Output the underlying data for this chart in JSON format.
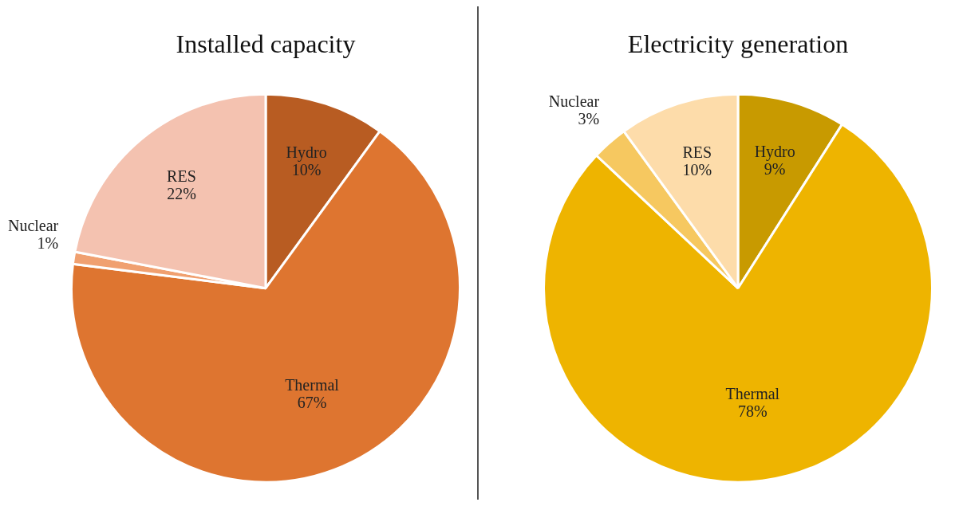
{
  "chart_data": [
    {
      "type": "pie",
      "title": "Installed capacity",
      "categories": [
        "Hydro",
        "Thermal",
        "Nuclear",
        "RES"
      ],
      "values": [
        10,
        67,
        1,
        22
      ],
      "value_labels": [
        "10%",
        "67%",
        "1%",
        "22%"
      ],
      "colors": [
        "#b85c22",
        "#de7530",
        "#f0a070",
        "#f4c2b0"
      ],
      "legend": false
    },
    {
      "type": "pie",
      "title": "Electricity generation",
      "categories": [
        "Hydro",
        "Thermal",
        "Nuclear",
        "RES"
      ],
      "values": [
        9,
        78,
        3,
        10
      ],
      "value_labels": [
        "9%",
        "78%",
        "3%",
        "10%"
      ],
      "colors": [
        "#c89a00",
        "#eeb400",
        "#f6c860",
        "#fddcaa"
      ],
      "legend": false
    }
  ]
}
